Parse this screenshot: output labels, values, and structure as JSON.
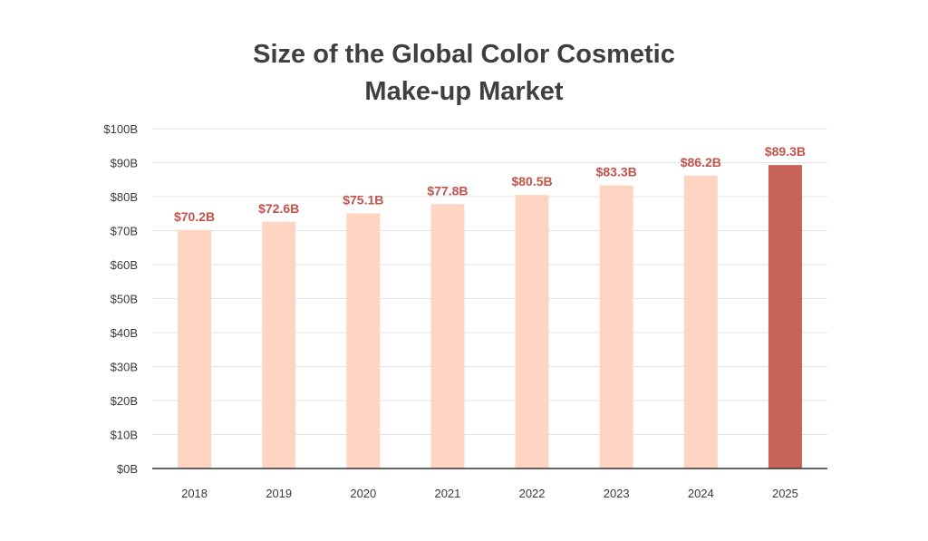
{
  "chart_data": {
    "type": "bar",
    "title_lines": [
      "Size of the Global Color Cosmetic",
      "Make-up Market"
    ],
    "categories": [
      "2018",
      "2019",
      "2020",
      "2021",
      "2022",
      "2023",
      "2024",
      "2025"
    ],
    "values": [
      70.2,
      72.6,
      75.1,
      77.8,
      80.5,
      83.3,
      86.2,
      89.3
    ],
    "data_labels": [
      "$70.2B",
      "$72.6B",
      "$75.1B",
      "$77.8B",
      "$80.5B",
      "$83.3B",
      "$86.2B",
      "$89.3B"
    ],
    "y_ticks": [
      0,
      10,
      20,
      30,
      40,
      50,
      60,
      70,
      80,
      90,
      100
    ],
    "y_tick_labels": [
      "$0B",
      "$10B",
      "$20B",
      "$30B",
      "$40B",
      "$50B",
      "$60B",
      "$70B",
      "$80B",
      "$90B",
      "$100B"
    ],
    "ylim": [
      0,
      100
    ],
    "grid": true,
    "colors": {
      "bar": "#fdd5c2",
      "highlight_bar": "#c76357",
      "data_label": "#c4524a",
      "grid": "#e3e3e3",
      "axis": "#333333"
    },
    "highlight_index": 7
  }
}
